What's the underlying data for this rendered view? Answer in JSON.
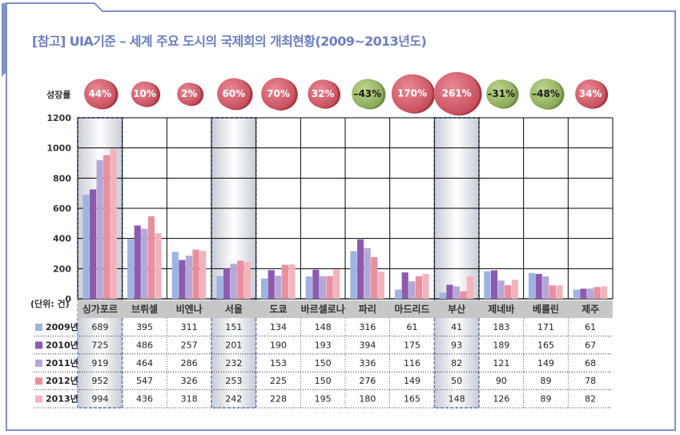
{
  "title": "[참고] UIA기준 – 세계 주요 도시의 국제회의 개최현황(2009~2013년도)",
  "growth_label": "성장률",
  "unit_label": "(단위: 건)",
  "colors": {
    "border": "#7f91c9",
    "title": "#6b7fbf",
    "positive_bubble": "#d9606e",
    "negative_bubble": "#9fbf6a",
    "series": [
      "#9eb3e0",
      "#8c5bb0",
      "#b5a8d6",
      "#e98f9f",
      "#f1b4bd"
    ]
  },
  "chart_data": {
    "type": "bar",
    "title": "[참고] UIA기준 – 세계 주요 도시의 국제회의 개최현황(2009~2013년도)",
    "xlabel": "",
    "ylabel": "(단위: 건)",
    "ylim": [
      0,
      1200
    ],
    "yticks": [
      0,
      200,
      400,
      600,
      800,
      1000,
      1200
    ],
    "grid": true,
    "categories": [
      "싱가포르",
      "브뤼셀",
      "비엔나",
      "서울",
      "도쿄",
      "바르셀로나",
      "파리",
      "마드리드",
      "부산",
      "제네바",
      "베를린",
      "제주"
    ],
    "highlighted": [
      "싱가포르",
      "서울",
      "부산"
    ],
    "series": [
      {
        "name": "2009년",
        "values": [
          689,
          395,
          311,
          151,
          134,
          148,
          316,
          61,
          41,
          183,
          171,
          61
        ]
      },
      {
        "name": "2010년",
        "values": [
          725,
          486,
          257,
          201,
          190,
          193,
          394,
          175,
          93,
          189,
          165,
          67
        ]
      },
      {
        "name": "2011년",
        "values": [
          919,
          464,
          286,
          232,
          153,
          150,
          336,
          116,
          82,
          121,
          149,
          68
        ]
      },
      {
        "name": "2012년",
        "values": [
          952,
          547,
          326,
          253,
          225,
          150,
          276,
          149,
          50,
          90,
          89,
          78
        ]
      },
      {
        "name": "2013년",
        "values": [
          994,
          436,
          318,
          242,
          228,
          195,
          180,
          165,
          148,
          126,
          89,
          82
        ]
      }
    ],
    "growth": [
      "44%",
      "10%",
      "2%",
      "60%",
      "70%",
      "32%",
      "–43%",
      "170%",
      "261%",
      "–31%",
      "–48%",
      "34%"
    ],
    "growth_values": [
      44,
      10,
      2,
      60,
      70,
      32,
      -43,
      170,
      261,
      -31,
      -48,
      34
    ]
  }
}
